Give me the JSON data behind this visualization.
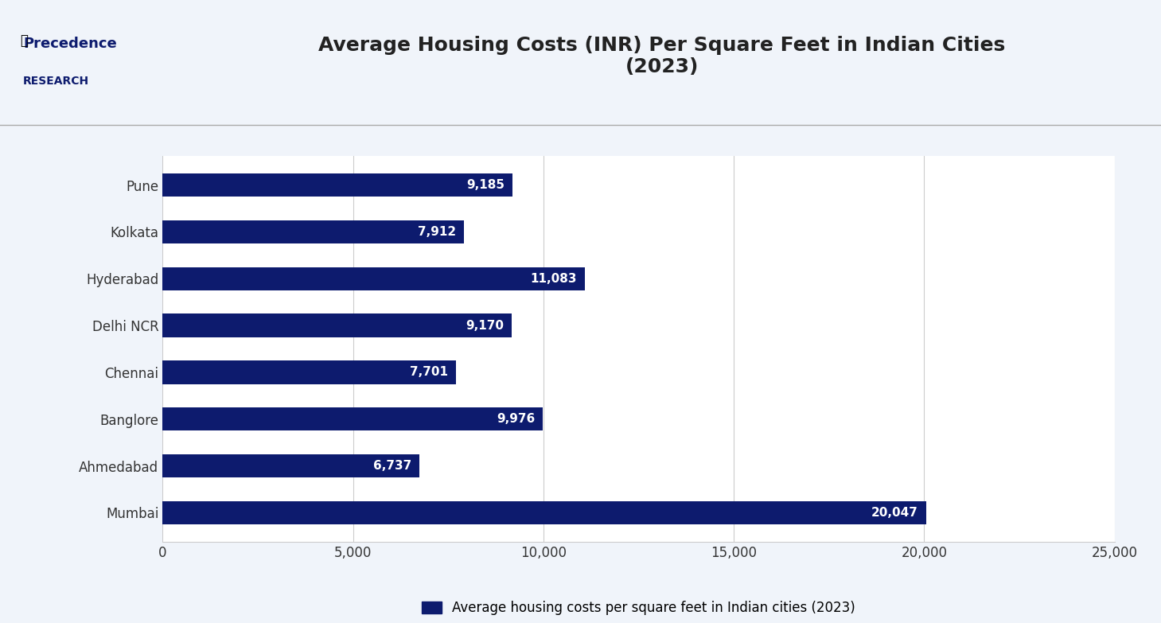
{
  "title": "Average Housing Costs (INR) Per Square Feet in Indian Cities\n(2023)",
  "cities": [
    "Pune",
    "Kolkata",
    "Hyderabad",
    "Delhi NCR",
    "Chennai",
    "Banglore",
    "Ahmedabad",
    "Mumbai"
  ],
  "values": [
    9185,
    7912,
    11083,
    9170,
    7701,
    9976,
    6737,
    20047
  ],
  "bar_color": "#0d1b6e",
  "value_labels": [
    "9,185",
    "7,912",
    "11,083",
    "9,170",
    "7,701",
    "9,976",
    "6,737",
    "20,047"
  ],
  "xlim": [
    0,
    25000
  ],
  "xticks": [
    0,
    5000,
    10000,
    15000,
    20000,
    25000
  ],
  "xtick_labels": [
    "0",
    "5,000",
    "10,000",
    "15,000",
    "20,000",
    "25,000"
  ],
  "legend_label": "Average housing costs per square feet in Indian cities (2023)",
  "legend_color": "#0d1b6e",
  "bg_color": "#f0f4fa",
  "plot_bg_color": "#ffffff",
  "title_fontsize": 18,
  "tick_fontsize": 12,
  "label_fontsize": 12,
  "bar_height": 0.5,
  "value_fontsize": 11,
  "value_color": "#ffffff"
}
